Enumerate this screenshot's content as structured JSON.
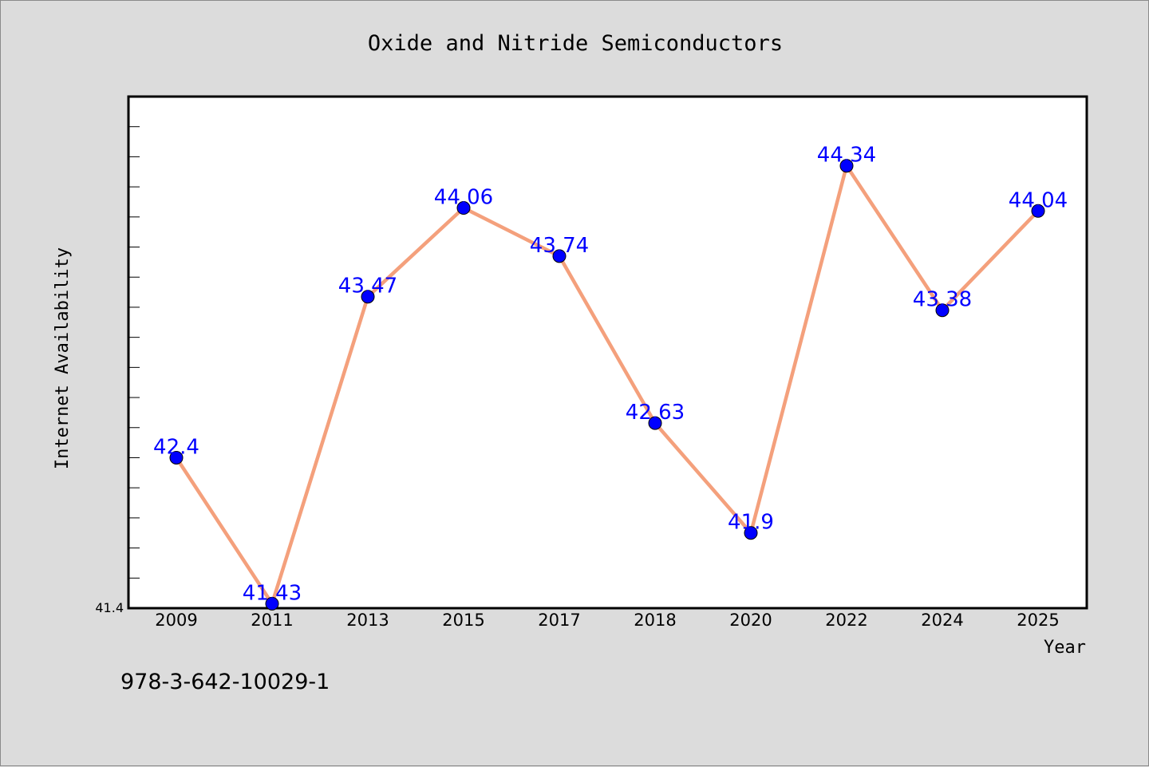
{
  "chart_data": {
    "type": "line",
    "title": "Oxide and Nitride Semiconductors",
    "xlabel": "Year",
    "ylabel": "Internet Availability",
    "categories": [
      "2009",
      "2011",
      "2013",
      "2015",
      "2017",
      "2018",
      "2020",
      "2022",
      "2024",
      "2025"
    ],
    "series": [
      {
        "values": [
          42.4,
          41.43,
          43.47,
          44.06,
          43.74,
          42.63,
          41.9,
          44.34,
          43.38,
          44.04
        ],
        "labels": [
          "42.4",
          "41.43",
          "43.47",
          "44.06",
          "43.74",
          "42.63",
          "41.9",
          "44.34",
          "43.38",
          "44.04"
        ],
        "line_color": "#f4a07c",
        "marker_color": "#0000ff"
      }
    ],
    "ylim": [
      41.4,
      44.8
    ],
    "y_tick_label": "41.4",
    "grid": false,
    "data_labels": true
  },
  "footnote": "978-3-642-10029-1"
}
